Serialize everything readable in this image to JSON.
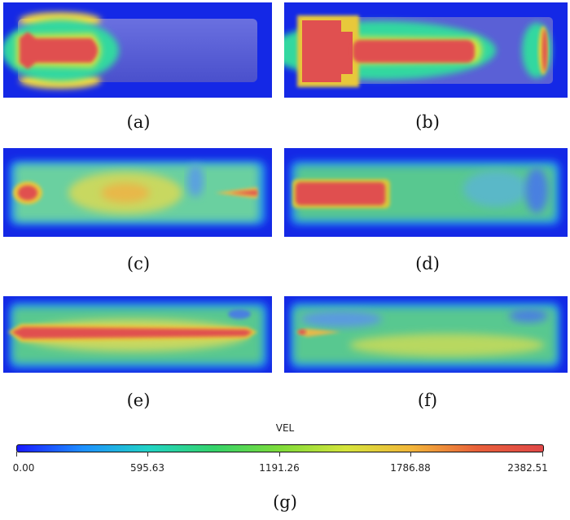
{
  "panels": [
    {
      "id": "a",
      "caption": "(a)"
    },
    {
      "id": "b",
      "caption": "(b)"
    },
    {
      "id": "c",
      "caption": "(c)"
    },
    {
      "id": "d",
      "caption": "(d)"
    },
    {
      "id": "e",
      "caption": "(e)"
    },
    {
      "id": "f",
      "caption": "(f)"
    }
  ],
  "colorbar": {
    "title": "VEL",
    "ticks": [
      "0.00",
      "595.63",
      "1191.26",
      "1786.88",
      "2382.51"
    ],
    "min": 0.0,
    "max": 2382.51,
    "colors": [
      "#1a1aff",
      "#1e90ff",
      "#22d3c5",
      "#35d36a",
      "#7fdc3a",
      "#d6e53c",
      "#f2b53a",
      "#e8603a",
      "#e04848"
    ],
    "caption": "(g)"
  },
  "colors": {
    "background_blue": "#1428e6",
    "pipe_blue": "#5058d8",
    "jet_red": "#e05050",
    "flow_green": "#58c890",
    "flow_yellow": "#c8d860"
  }
}
